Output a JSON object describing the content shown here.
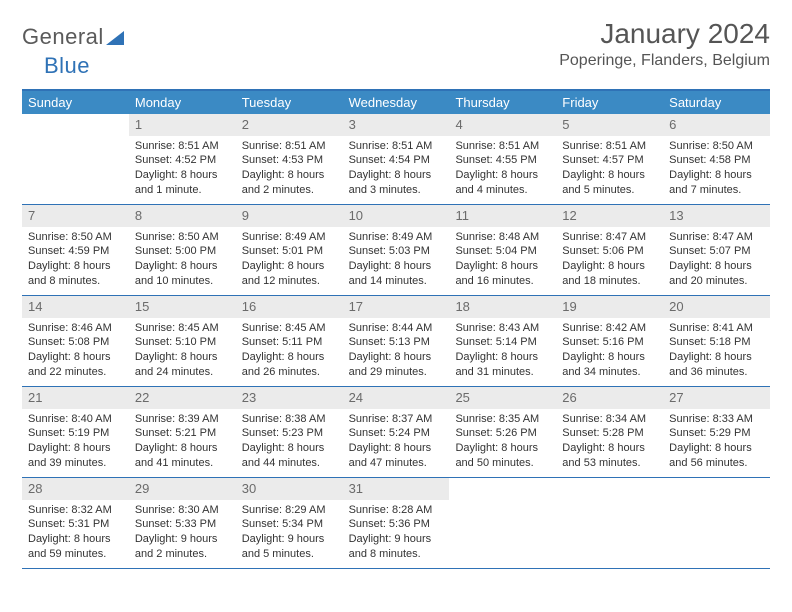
{
  "logo": {
    "text1": "General",
    "text2": "Blue"
  },
  "title": {
    "month": "January 2024",
    "location": "Poperinge, Flanders, Belgium"
  },
  "colors": {
    "header_bg": "#3b8ac4",
    "header_text": "#ffffff",
    "rule": "#2f72b6",
    "daynum_bg": "#ebebeb",
    "daynum_text": "#6b6b6b",
    "body_text": "#333333",
    "logo_gray": "#5a5a5a",
    "logo_blue": "#2f72b6"
  },
  "weekdays": [
    "Sunday",
    "Monday",
    "Tuesday",
    "Wednesday",
    "Thursday",
    "Friday",
    "Saturday"
  ],
  "weeks": [
    [
      null,
      {
        "n": "1",
        "sr": "8:51 AM",
        "ss": "4:52 PM",
        "dl": "8 hours and 1 minute."
      },
      {
        "n": "2",
        "sr": "8:51 AM",
        "ss": "4:53 PM",
        "dl": "8 hours and 2 minutes."
      },
      {
        "n": "3",
        "sr": "8:51 AM",
        "ss": "4:54 PM",
        "dl": "8 hours and 3 minutes."
      },
      {
        "n": "4",
        "sr": "8:51 AM",
        "ss": "4:55 PM",
        "dl": "8 hours and 4 minutes."
      },
      {
        "n": "5",
        "sr": "8:51 AM",
        "ss": "4:57 PM",
        "dl": "8 hours and 5 minutes."
      },
      {
        "n": "6",
        "sr": "8:50 AM",
        "ss": "4:58 PM",
        "dl": "8 hours and 7 minutes."
      }
    ],
    [
      {
        "n": "7",
        "sr": "8:50 AM",
        "ss": "4:59 PM",
        "dl": "8 hours and 8 minutes."
      },
      {
        "n": "8",
        "sr": "8:50 AM",
        "ss": "5:00 PM",
        "dl": "8 hours and 10 minutes."
      },
      {
        "n": "9",
        "sr": "8:49 AM",
        "ss": "5:01 PM",
        "dl": "8 hours and 12 minutes."
      },
      {
        "n": "10",
        "sr": "8:49 AM",
        "ss": "5:03 PM",
        "dl": "8 hours and 14 minutes."
      },
      {
        "n": "11",
        "sr": "8:48 AM",
        "ss": "5:04 PM",
        "dl": "8 hours and 16 minutes."
      },
      {
        "n": "12",
        "sr": "8:47 AM",
        "ss": "5:06 PM",
        "dl": "8 hours and 18 minutes."
      },
      {
        "n": "13",
        "sr": "8:47 AM",
        "ss": "5:07 PM",
        "dl": "8 hours and 20 minutes."
      }
    ],
    [
      {
        "n": "14",
        "sr": "8:46 AM",
        "ss": "5:08 PM",
        "dl": "8 hours and 22 minutes."
      },
      {
        "n": "15",
        "sr": "8:45 AM",
        "ss": "5:10 PM",
        "dl": "8 hours and 24 minutes."
      },
      {
        "n": "16",
        "sr": "8:45 AM",
        "ss": "5:11 PM",
        "dl": "8 hours and 26 minutes."
      },
      {
        "n": "17",
        "sr": "8:44 AM",
        "ss": "5:13 PM",
        "dl": "8 hours and 29 minutes."
      },
      {
        "n": "18",
        "sr": "8:43 AM",
        "ss": "5:14 PM",
        "dl": "8 hours and 31 minutes."
      },
      {
        "n": "19",
        "sr": "8:42 AM",
        "ss": "5:16 PM",
        "dl": "8 hours and 34 minutes."
      },
      {
        "n": "20",
        "sr": "8:41 AM",
        "ss": "5:18 PM",
        "dl": "8 hours and 36 minutes."
      }
    ],
    [
      {
        "n": "21",
        "sr": "8:40 AM",
        "ss": "5:19 PM",
        "dl": "8 hours and 39 minutes."
      },
      {
        "n": "22",
        "sr": "8:39 AM",
        "ss": "5:21 PM",
        "dl": "8 hours and 41 minutes."
      },
      {
        "n": "23",
        "sr": "8:38 AM",
        "ss": "5:23 PM",
        "dl": "8 hours and 44 minutes."
      },
      {
        "n": "24",
        "sr": "8:37 AM",
        "ss": "5:24 PM",
        "dl": "8 hours and 47 minutes."
      },
      {
        "n": "25",
        "sr": "8:35 AM",
        "ss": "5:26 PM",
        "dl": "8 hours and 50 minutes."
      },
      {
        "n": "26",
        "sr": "8:34 AM",
        "ss": "5:28 PM",
        "dl": "8 hours and 53 minutes."
      },
      {
        "n": "27",
        "sr": "8:33 AM",
        "ss": "5:29 PM",
        "dl": "8 hours and 56 minutes."
      }
    ],
    [
      {
        "n": "28",
        "sr": "8:32 AM",
        "ss": "5:31 PM",
        "dl": "8 hours and 59 minutes."
      },
      {
        "n": "29",
        "sr": "8:30 AM",
        "ss": "5:33 PM",
        "dl": "9 hours and 2 minutes."
      },
      {
        "n": "30",
        "sr": "8:29 AM",
        "ss": "5:34 PM",
        "dl": "9 hours and 5 minutes."
      },
      {
        "n": "31",
        "sr": "8:28 AM",
        "ss": "5:36 PM",
        "dl": "9 hours and 8 minutes."
      },
      null,
      null,
      null
    ]
  ],
  "labels": {
    "sunrise": "Sunrise:",
    "sunset": "Sunset:",
    "daylight": "Daylight:"
  }
}
